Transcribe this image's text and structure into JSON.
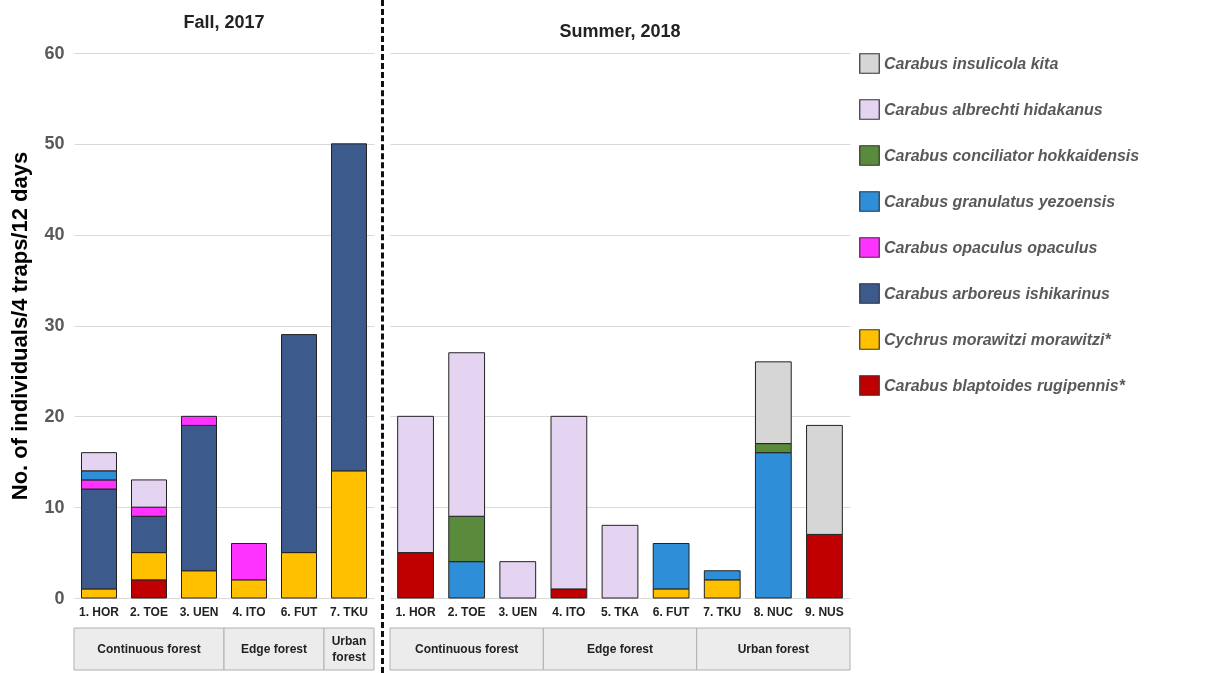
{
  "chart_data": [
    {
      "type": "bar",
      "title": "Fall, 2017",
      "ylabel": "No. of individuals/4 traps/12 days",
      "stacked": true,
      "grid": "y",
      "legend": "right",
      "categories": [
        "1. HOR",
        "2. TOE",
        "3. UEN",
        "4. ITO",
        "6. FUT",
        "7. TKU"
      ],
      "ylim": [
        0,
        60
      ],
      "yticks": [
        0,
        10,
        20,
        30,
        40,
        50,
        60
      ],
      "annotations": [
        "Continuous forest",
        "Edge forest",
        "Urban forest"
      ],
      "series": [
        {
          "name": "Carabus blaptoides rugipennis*",
          "color": "#c00000",
          "values": [
            null,
            2,
            null,
            null,
            null,
            null
          ]
        },
        {
          "name": "Cychrus morawitzi morawitzi*",
          "color": "#ffc000",
          "values": [
            1,
            3,
            3,
            2,
            5,
            14
          ]
        },
        {
          "name": "Carabus arboreus ishikarinus",
          "color": "#3d5a8c",
          "values": [
            11,
            4,
            16,
            null,
            24,
            36
          ]
        },
        {
          "name": "Carabus opaculus opaculus",
          "color": "#ff33ff",
          "values": [
            1,
            1,
            1,
            4,
            null,
            null
          ]
        },
        {
          "name": "Carabus granulatus yezoensis",
          "color": "#2e8ed8",
          "values": [
            1,
            null,
            null,
            null,
            null,
            null
          ]
        },
        {
          "name": "Carabus albrechti hidakanus",
          "color": "#e4d4f2",
          "values": [
            2,
            3,
            null,
            null,
            null,
            null
          ]
        }
      ]
    },
    {
      "type": "bar",
      "title": "Summer, 2018",
      "stacked": true,
      "grid": "y",
      "legend": "right",
      "tick_labels": "x",
      "categories": [
        "1. HOR",
        "2. TOE",
        "3. UEN",
        "4. ITO",
        "5. TKA",
        "6. FUT",
        "7. TKU",
        "8. NUC",
        "9. NUS"
      ],
      "ylim": [
        0,
        60
      ],
      "yticks": [
        0,
        10,
        20,
        30,
        40,
        50,
        60
      ],
      "annotations": [
        "Continuous forest",
        "Edge forest",
        "Urban forest"
      ],
      "series": [
        {
          "name": "Carabus blaptoides rugipennis*",
          "color": "#c00000",
          "values": [
            5,
            null,
            null,
            1,
            null,
            null,
            null,
            null,
            7
          ]
        },
        {
          "name": "Cychrus morawitzi morawitzi*",
          "color": "#ffc000",
          "values": [
            null,
            null,
            null,
            null,
            null,
            1,
            2,
            null,
            null
          ]
        },
        {
          "name": "Carabus granulatus yezoensis",
          "color": "#2e8ed8",
          "values": [
            null,
            4,
            null,
            null,
            null,
            5,
            1,
            16,
            null
          ]
        },
        {
          "name": "Carabus conciliator hokkaidensis",
          "color": "#5a8a3c",
          "values": [
            null,
            5,
            null,
            null,
            null,
            null,
            null,
            1,
            null
          ]
        },
        {
          "name": "Carabus albrechti hidakanus",
          "color": "#e4d4f2",
          "values": [
            15,
            18,
            4,
            19,
            8,
            null,
            null,
            null,
            null
          ]
        },
        {
          "name": "Carabus insulicola kita",
          "color": "#d6d6d6",
          "values": [
            null,
            null,
            null,
            null,
            null,
            null,
            null,
            9,
            12
          ]
        }
      ]
    }
  ]
}
